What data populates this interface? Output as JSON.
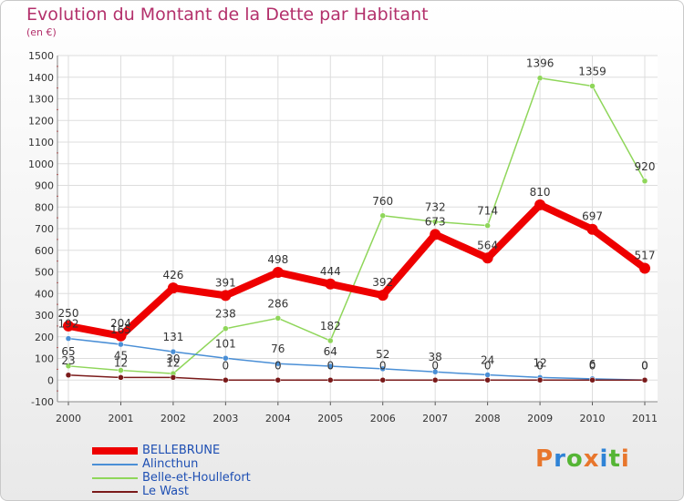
{
  "header": {
    "title": "Evolution du Montant de la Dette par Habitant",
    "subtitle": "(en €)"
  },
  "logo": {
    "text": "Proxiti",
    "colors": [
      "#e8762c",
      "#2f83d6",
      "#55b535",
      "#e8762c",
      "#2f83d6",
      "#55b535",
      "#e8762c"
    ]
  },
  "chart_data": {
    "type": "line",
    "title": "Evolution du Montant de la Dette par Habitant",
    "ylabel": "(en €)",
    "x": [
      "2000",
      "2001",
      "2002",
      "2003",
      "2004",
      "2005",
      "2006",
      "2007",
      "2008",
      "2009",
      "2010",
      "2011"
    ],
    "ylim": [
      -100,
      1500
    ],
    "yticks": [
      "-100",
      "0",
      "100",
      "200",
      "300",
      "400",
      "500",
      "600",
      "700",
      "800",
      "900",
      "1000",
      "1100",
      "1200",
      "1300",
      "1400",
      "1500"
    ],
    "grid": true,
    "legend": "bottom-left",
    "series": [
      {
        "name": "BELLEBRUNE",
        "color": "#ee0000",
        "values": [
          250,
          204,
          426,
          391,
          498,
          444,
          392,
          673,
          564,
          810,
          697,
          517
        ],
        "labels": [
          "250",
          "204",
          "426",
          "391",
          "498",
          "444",
          "392",
          "673",
          "564",
          "810",
          "697",
          "517"
        ]
      },
      {
        "name": "Alincthun",
        "color": "#4a8fd6",
        "values": [
          192,
          165,
          131,
          101,
          76,
          64,
          52,
          38,
          24,
          12,
          6,
          0
        ],
        "labels": [
          "192",
          "165",
          "131",
          "101",
          "76",
          "64",
          "52",
          "38",
          "24",
          "12",
          "6",
          "0"
        ]
      },
      {
        "name": "Belle-et-Houllefort",
        "color": "#8fd65a",
        "values": [
          65,
          45,
          30,
          238,
          286,
          182,
          760,
          732,
          714,
          1396,
          1359,
          920
        ],
        "labels": [
          "65",
          "45",
          "30",
          "238",
          "286",
          "182",
          "760",
          "732",
          "714",
          "1396",
          "1359",
          "920"
        ]
      },
      {
        "name": "Le Wast",
        "color": "#7a1a1a",
        "values": [
          23,
          12,
          12,
          0,
          0,
          0,
          0,
          0,
          0,
          0,
          0,
          0
        ],
        "labels": [
          "23",
          "12",
          "12",
          "0",
          "0",
          "0",
          "0",
          "0",
          "0",
          "0",
          "0",
          "0"
        ]
      }
    ]
  }
}
